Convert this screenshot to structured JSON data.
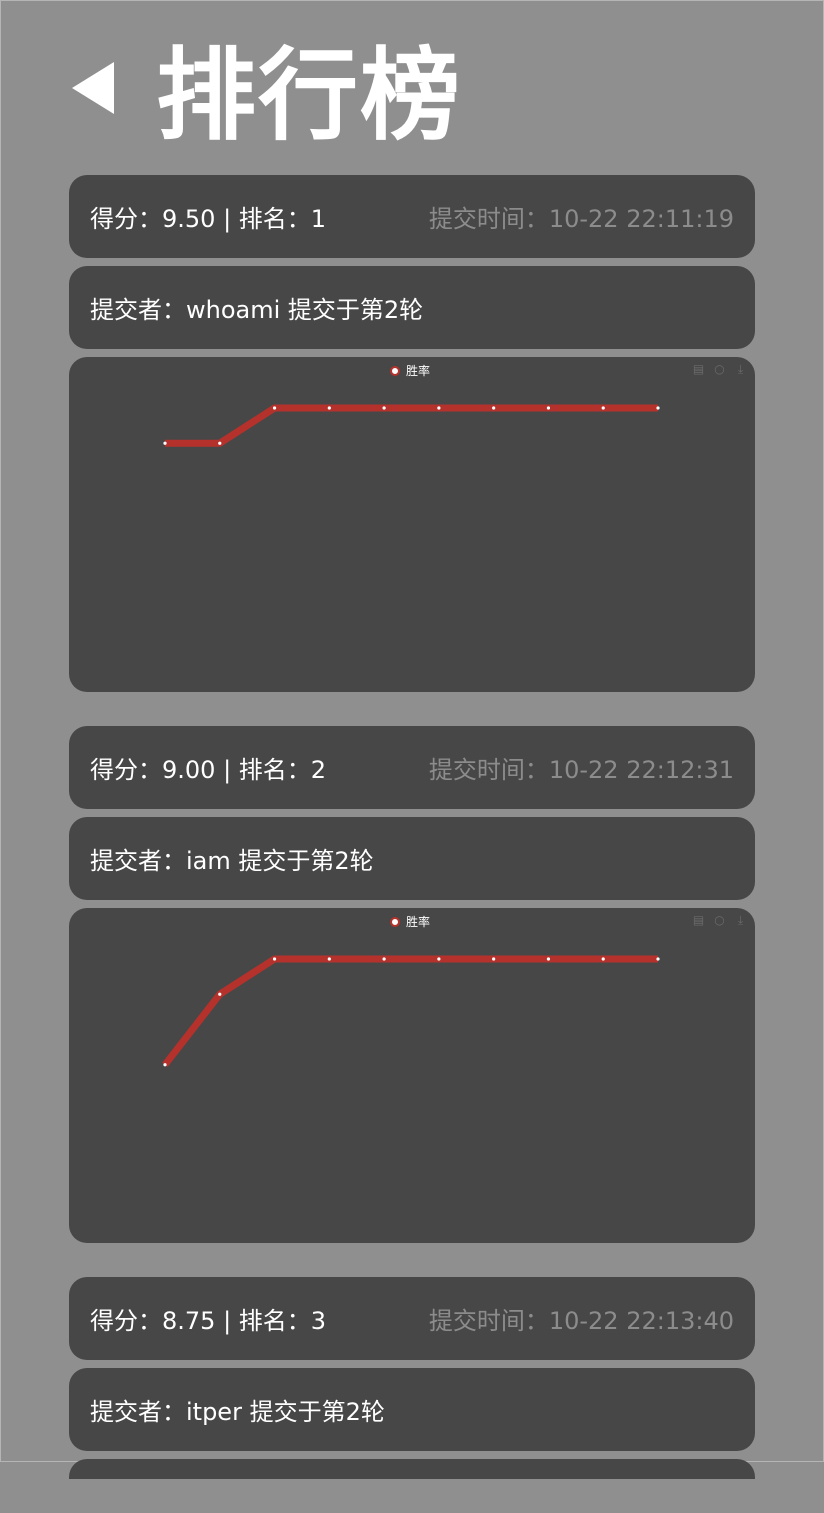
{
  "header": {
    "title": "排行榜",
    "back_icon": "triangle-left-icon"
  },
  "colors": {
    "background": "#8f8f8f",
    "card": "#474747",
    "line": "#b5322c",
    "muted_text": "#8c8c8c"
  },
  "entries": [
    {
      "score_rank": "得分：9.50 | 排名：1",
      "submit_time": "提交时间：10-22 22:11:19",
      "submitter": "提交者：whoami 提交于第2轮",
      "chart_data": {
        "type": "line",
        "series": [
          {
            "name": "胜率",
            "values": [
              0.85,
              0.85,
              1,
              1,
              1,
              1,
              1,
              1,
              1,
              1
            ]
          }
        ],
        "ylim": [
          0,
          1.2
        ],
        "grid": false,
        "legend": "top-center"
      }
    },
    {
      "score_rank": "得分：9.00 | 排名：2",
      "submit_time": "提交时间：10-22 22:12:31",
      "submitter": "提交者：iam 提交于第2轮",
      "chart_data": {
        "type": "line",
        "series": [
          {
            "name": "胜率",
            "values": [
              0.55,
              0.85,
              1,
              1,
              1,
              1,
              1,
              1,
              1,
              1
            ]
          }
        ],
        "ylim": [
          0,
          1.2
        ],
        "grid": false,
        "legend": "top-center"
      }
    },
    {
      "score_rank": "得分：8.75 | 排名：3",
      "submit_time": "提交时间：10-22 22:13:40",
      "submitter": "提交者：itper 提交于第2轮"
    }
  ],
  "toolbox": [
    "data-view-icon",
    "restore-icon",
    "download-icon"
  ]
}
